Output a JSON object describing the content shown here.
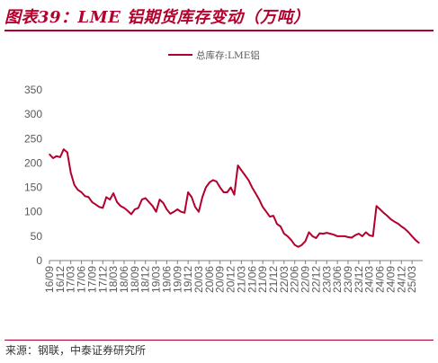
{
  "title": "图表39：LME 铝期货库存变动（万吨）",
  "source": "来源：钢联，中泰证券研究所",
  "chart_data": {
    "type": "line",
    "title": "",
    "xlabel": "",
    "ylabel": "",
    "ylim": [
      0,
      350
    ],
    "yticks": [
      "0",
      "50",
      "100",
      "150",
      "200",
      "250",
      "300",
      "350"
    ],
    "xticks": [
      "16/09",
      "16/12",
      "17/03",
      "17/06",
      "17/09",
      "17/12",
      "18/03",
      "18/06",
      "18/09",
      "18/12",
      "19/03",
      "19/06",
      "19/09",
      "19/12",
      "20/03",
      "20/06",
      "20/09",
      "20/12",
      "21/03",
      "21/06",
      "21/09",
      "21/12",
      "22/03",
      "22/06",
      "22/09",
      "22/12",
      "23/03",
      "23/06",
      "23/09",
      "23/12",
      "24/03",
      "24/06",
      "24/09",
      "24/12",
      "25/03"
    ],
    "grid": false,
    "legend_position": "top-center",
    "color": "#b3002d",
    "series": [
      {
        "name": "总库存:LME铝",
        "points": [
          [
            "16/09",
            218
          ],
          [
            "16/10",
            210
          ],
          [
            "16/11",
            214
          ],
          [
            "16/12",
            212
          ],
          [
            "17/01",
            228
          ],
          [
            "17/02",
            222
          ],
          [
            "17/03",
            180
          ],
          [
            "17/04",
            155
          ],
          [
            "17/05",
            145
          ],
          [
            "17/06",
            140
          ],
          [
            "17/07",
            132
          ],
          [
            "17/08",
            130
          ],
          [
            "17/09",
            120
          ],
          [
            "17/10",
            115
          ],
          [
            "17/11",
            110
          ],
          [
            "17/12",
            108
          ],
          [
            "18/01",
            130
          ],
          [
            "18/02",
            125
          ],
          [
            "18/03",
            138
          ],
          [
            "18/04",
            120
          ],
          [
            "18/05",
            112
          ],
          [
            "18/06",
            108
          ],
          [
            "18/07",
            102
          ],
          [
            "18/08",
            95
          ],
          [
            "18/09",
            105
          ],
          [
            "18/10",
            108
          ],
          [
            "18/11",
            125
          ],
          [
            "18/12",
            128
          ],
          [
            "19/01",
            120
          ],
          [
            "19/02",
            112
          ],
          [
            "19/03",
            100
          ],
          [
            "19/04",
            125
          ],
          [
            "19/05",
            118
          ],
          [
            "19/06",
            105
          ],
          [
            "19/07",
            96
          ],
          [
            "19/08",
            100
          ],
          [
            "19/09",
            105
          ],
          [
            "19/10",
            100
          ],
          [
            "19/11",
            98
          ],
          [
            "19/12",
            140
          ],
          [
            "20/01",
            130
          ],
          [
            "20/02",
            110
          ],
          [
            "20/03",
            100
          ],
          [
            "20/04",
            130
          ],
          [
            "20/05",
            150
          ],
          [
            "20/06",
            160
          ],
          [
            "20/07",
            165
          ],
          [
            "20/08",
            162
          ],
          [
            "20/09",
            150
          ],
          [
            "20/10",
            140
          ],
          [
            "20/11",
            140
          ],
          [
            "20/12",
            150
          ],
          [
            "21/01",
            135
          ],
          [
            "21/02",
            195
          ],
          [
            "21/03",
            185
          ],
          [
            "21/04",
            175
          ],
          [
            "21/05",
            165
          ],
          [
            "21/06",
            150
          ],
          [
            "21/07",
            138
          ],
          [
            "21/08",
            125
          ],
          [
            "21/09",
            110
          ],
          [
            "21/10",
            100
          ],
          [
            "21/11",
            90
          ],
          [
            "21/12",
            92
          ],
          [
            "22/01",
            75
          ],
          [
            "22/02",
            70
          ],
          [
            "22/03",
            55
          ],
          [
            "22/04",
            50
          ],
          [
            "22/05",
            42
          ],
          [
            "22/06",
            32
          ],
          [
            "22/07",
            28
          ],
          [
            "22/08",
            32
          ],
          [
            "22/09",
            40
          ],
          [
            "22/10",
            58
          ],
          [
            "22/11",
            50
          ],
          [
            "22/12",
            46
          ],
          [
            "23/01",
            56
          ],
          [
            "23/02",
            55
          ],
          [
            "23/03",
            57
          ],
          [
            "23/04",
            55
          ],
          [
            "23/05",
            53
          ],
          [
            "23/06",
            50
          ],
          [
            "23/07",
            50
          ],
          [
            "23/08",
            50
          ],
          [
            "23/09",
            48
          ],
          [
            "23/10",
            47
          ],
          [
            "23/11",
            52
          ],
          [
            "23/12",
            55
          ],
          [
            "24/01",
            50
          ],
          [
            "24/02",
            58
          ],
          [
            "24/03",
            52
          ],
          [
            "24/04",
            50
          ],
          [
            "24/05",
            112
          ],
          [
            "24/06",
            105
          ],
          [
            "24/07",
            98
          ],
          [
            "24/08",
            92
          ],
          [
            "24/09",
            85
          ],
          [
            "24/10",
            80
          ],
          [
            "24/11",
            76
          ],
          [
            "24/12",
            70
          ],
          [
            "25/01",
            65
          ],
          [
            "25/02",
            58
          ],
          [
            "25/03",
            50
          ],
          [
            "25/04",
            42
          ],
          [
            "25/05",
            36
          ]
        ]
      }
    ]
  }
}
